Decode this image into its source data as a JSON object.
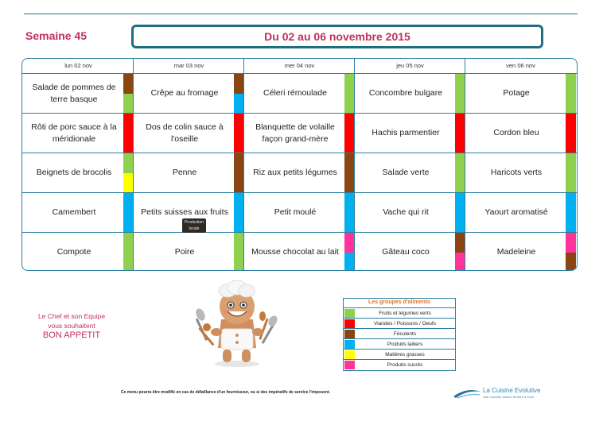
{
  "header": {
    "week": "Semaine 45",
    "title": "Du 02 au 06 novembre 2015"
  },
  "colors": {
    "legumes": "#8fd14f",
    "viandes": "#ff0000",
    "feculents": "#8b4513",
    "laitiers": "#00b0f0",
    "grasses": "#ffff00",
    "sucres": "#ff3399",
    "border": "#2a7fa0",
    "accent": "#c0305a"
  },
  "menu": {
    "days": [
      "lun 02 nov",
      "mar 03 nov",
      "mer 04 nov",
      "jeu 05 nov",
      "ven 06 nov"
    ],
    "rows": [
      [
        {
          "dish": "Salade de pommes de terre basque",
          "groups": [
            "feculents",
            "legumes"
          ]
        },
        {
          "dish": "Crêpe au fromage",
          "groups": [
            "feculents",
            "laitiers"
          ]
        },
        {
          "dish": "Céleri rémoulade",
          "groups": [
            "legumes"
          ]
        },
        {
          "dish": "Concombre bulgare",
          "groups": [
            "legumes"
          ]
        },
        {
          "dish": "Potage",
          "groups": [
            "legumes"
          ]
        }
      ],
      [
        {
          "dish": "Rôti de porc sauce à la méridionale",
          "groups": [
            "viandes"
          ]
        },
        {
          "dish": "Dos de colin sauce à l'oseille",
          "groups": [
            "viandes"
          ]
        },
        {
          "dish": "Blanquette de volaille façon grand-mère",
          "groups": [
            "viandes"
          ]
        },
        {
          "dish": "Hachis parmentier",
          "groups": [
            "viandes"
          ]
        },
        {
          "dish": "Cordon bleu",
          "groups": [
            "viandes"
          ]
        }
      ],
      [
        {
          "dish": "Beignets de brocolis",
          "groups": [
            "legumes",
            "grasses"
          ]
        },
        {
          "dish": "Penne",
          "groups": [
            "feculents"
          ]
        },
        {
          "dish": "Riz aux petits légumes",
          "groups": [
            "feculents"
          ]
        },
        {
          "dish": "Salade verte",
          "groups": [
            "legumes"
          ]
        },
        {
          "dish": "Haricots verts",
          "groups": [
            "legumes"
          ]
        }
      ],
      [
        {
          "dish": "Camembert",
          "groups": [
            "laitiers"
          ]
        },
        {
          "dish": "Petits suisses aux fruits",
          "groups": [
            "laitiers"
          ]
        },
        {
          "dish": "Petit moulé",
          "groups": [
            "laitiers"
          ]
        },
        {
          "dish": "Vache qui rit",
          "groups": [
            "laitiers"
          ]
        },
        {
          "dish": "Yaourt aromatisé",
          "groups": [
            "laitiers"
          ]
        }
      ],
      [
        {
          "dish": "Compote",
          "groups": [
            "legumes"
          ]
        },
        {
          "dish": "Poire",
          "groups": [
            "legumes"
          ]
        },
        {
          "dish": "Mousse chocolat au lait",
          "groups": [
            "sucres",
            "laitiers"
          ]
        },
        {
          "dish": "Gâteau coco",
          "groups": [
            "feculents",
            "sucres"
          ]
        },
        {
          "dish": "Madeleine",
          "groups": [
            "sucres",
            "feculents"
          ]
        }
      ]
    ],
    "badge_text": "Production locale"
  },
  "chef_message": {
    "line1": "Le Chef et son Equipe",
    "line2": "vous souhaitent",
    "line3": "BON APPETIT"
  },
  "legend": {
    "title": "Les groupes d'aliments",
    "items": [
      {
        "label": "Fruits et légumes verts",
        "group": "legumes"
      },
      {
        "label": "Viandes / Poissons / Oeufs",
        "group": "viandes"
      },
      {
        "label": "Féculents",
        "group": "feculents"
      },
      {
        "label": "Produits laitiers",
        "group": "laitiers"
      },
      {
        "label": "Matières grasses",
        "group": "grasses"
      },
      {
        "label": "Produits sucrés",
        "group": "sucres"
      }
    ]
  },
  "footer": {
    "note": "Ce menu pourra être modifié en cas de défaillance d'un fournisseur, ou si des impératifs de service l'imposent.",
    "brand": "La Cuisine Evolutive",
    "brand_tagline": "Une nouvelle saveur de faire à vous"
  }
}
